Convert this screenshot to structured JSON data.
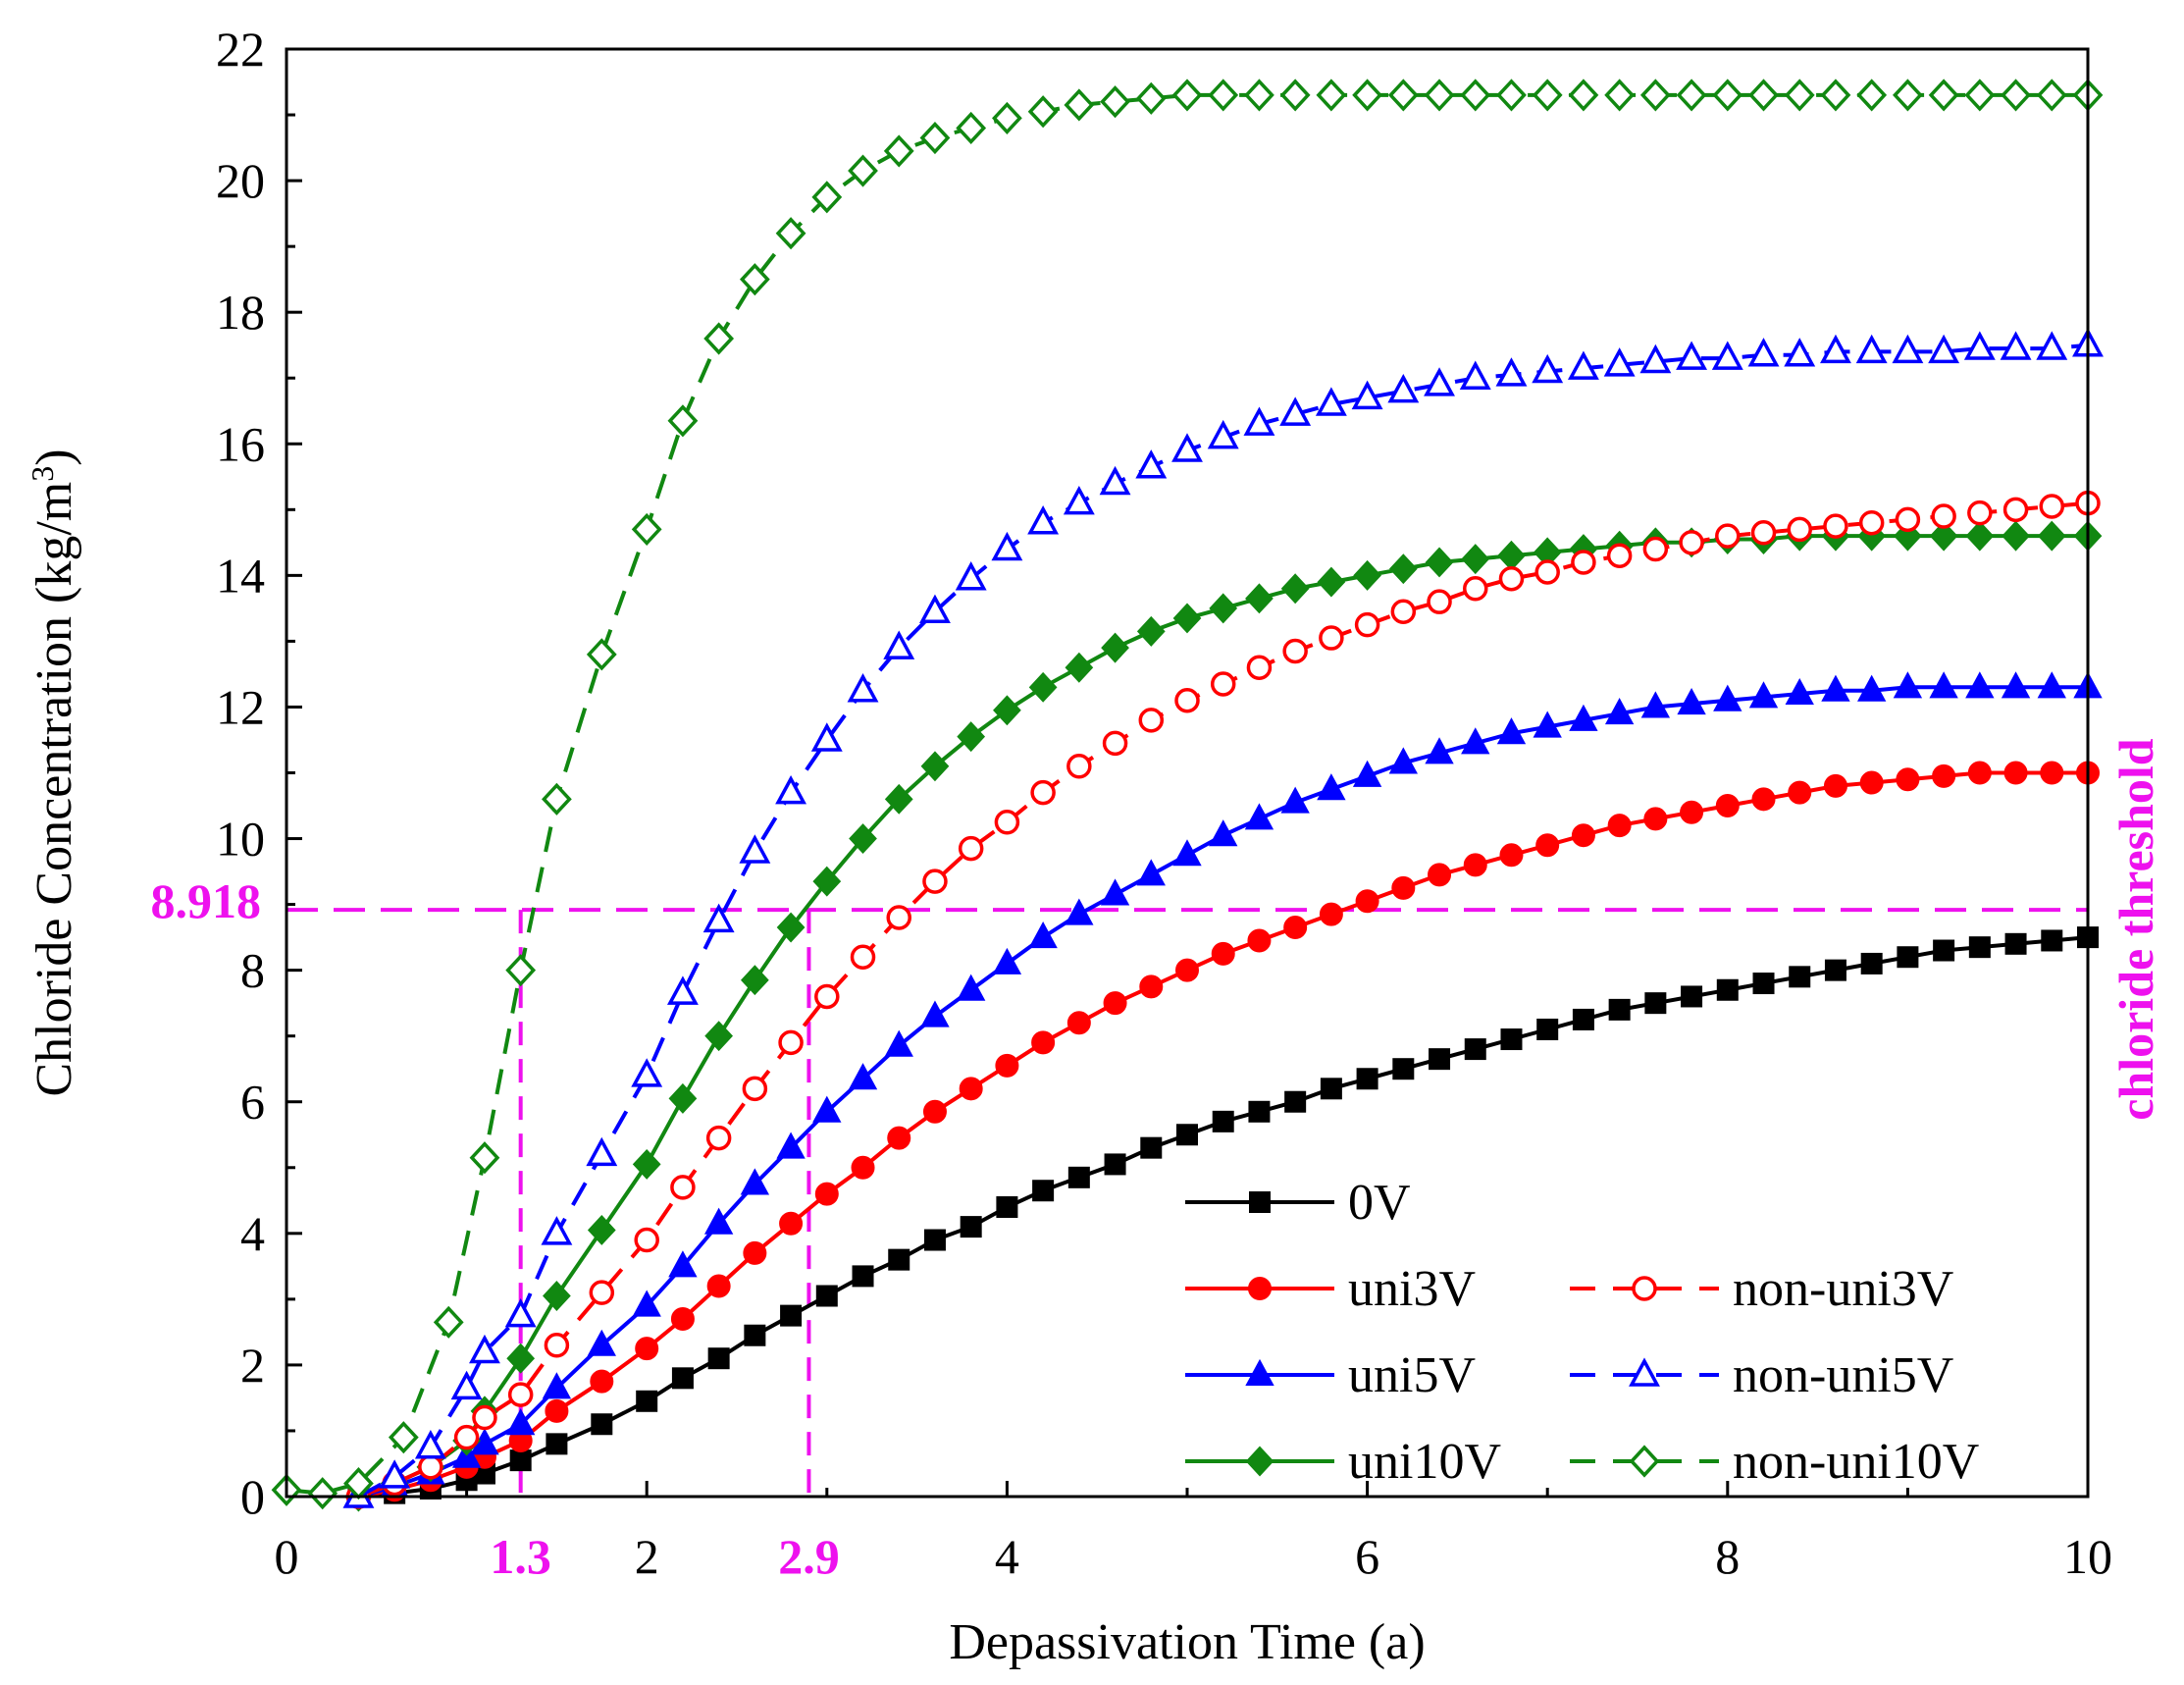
{
  "chart_data": {
    "type": "line",
    "xlabel": "Depassivation Time (a)",
    "ylabel": "Chloride Concentration (kg/m3)",
    "ylabel_parts": {
      "main": "Chloride Concentration (kg/m",
      "sup": "3",
      "close": ")"
    },
    "xlim": [
      0,
      10
    ],
    "ylim": [
      0,
      22
    ],
    "x_ticks": [
      0,
      2,
      4,
      6,
      8,
      10
    ],
    "y_ticks": [
      0,
      2,
      4,
      6,
      8,
      10,
      12,
      14,
      16,
      18,
      20,
      22
    ],
    "threshold": {
      "value": 8.918,
      "label": "8.918",
      "side_label": "chloride threshold",
      "color": "#ee11ee",
      "x_marks": [
        {
          "x": 1.3,
          "label": "1.3"
        },
        {
          "x": 2.9,
          "label": "2.9"
        }
      ]
    },
    "series": [
      {
        "name": "0V",
        "style": "solid",
        "marker": "square",
        "filled": true,
        "color": "#000000",
        "x": [
          0.4,
          0.6,
          0.8,
          1.0,
          1.1,
          1.3,
          1.5,
          1.75,
          2.0,
          2.2,
          2.4,
          2.6,
          2.8,
          3.0,
          3.2,
          3.4,
          3.6,
          3.8,
          4.0,
          4.2,
          4.4,
          4.6,
          4.8,
          5.0,
          5.2,
          5.4,
          5.6,
          5.8,
          6.0,
          6.2,
          6.4,
          6.6,
          6.8,
          7.0,
          7.2,
          7.4,
          7.6,
          7.8,
          8.0,
          8.2,
          8.4,
          8.6,
          8.8,
          9.0,
          9.2,
          9.4,
          9.6,
          9.8,
          10.0
        ],
        "values": [
          0.0,
          0.05,
          0.12,
          0.25,
          0.35,
          0.55,
          0.8,
          1.1,
          1.45,
          1.8,
          2.1,
          2.45,
          2.75,
          3.05,
          3.35,
          3.6,
          3.9,
          4.1,
          4.4,
          4.65,
          4.85,
          5.05,
          5.3,
          5.5,
          5.7,
          5.85,
          6.0,
          6.2,
          6.35,
          6.5,
          6.65,
          6.8,
          6.95,
          7.1,
          7.25,
          7.4,
          7.5,
          7.6,
          7.7,
          7.8,
          7.9,
          8.0,
          8.1,
          8.2,
          8.3,
          8.35,
          8.4,
          8.45,
          8.5
        ]
      },
      {
        "name": "uni3V",
        "style": "solid",
        "marker": "circle",
        "filled": true,
        "color": "#ff0000",
        "x": [
          0.4,
          0.6,
          0.8,
          1.0,
          1.1,
          1.3,
          1.5,
          1.75,
          2.0,
          2.2,
          2.4,
          2.6,
          2.8,
          3.0,
          3.2,
          3.4,
          3.6,
          3.8,
          4.0,
          4.2,
          4.4,
          4.6,
          4.8,
          5.0,
          5.2,
          5.4,
          5.6,
          5.8,
          6.0,
          6.2,
          6.4,
          6.6,
          6.8,
          7.0,
          7.2,
          7.4,
          7.6,
          7.8,
          8.0,
          8.2,
          8.4,
          8.6,
          8.8,
          9.0,
          9.2,
          9.4,
          9.6,
          9.8,
          10.0
        ],
        "values": [
          0.0,
          0.1,
          0.25,
          0.45,
          0.6,
          0.85,
          1.3,
          1.75,
          2.25,
          2.7,
          3.2,
          3.7,
          4.15,
          4.6,
          5.0,
          5.45,
          5.85,
          6.2,
          6.55,
          6.9,
          7.2,
          7.5,
          7.75,
          8.0,
          8.25,
          8.45,
          8.65,
          8.85,
          9.05,
          9.25,
          9.45,
          9.6,
          9.75,
          9.9,
          10.05,
          10.2,
          10.3,
          10.4,
          10.5,
          10.6,
          10.7,
          10.8,
          10.85,
          10.9,
          10.95,
          11.0,
          11.0,
          11.0,
          11.0
        ]
      },
      {
        "name": "uni5V",
        "style": "solid",
        "marker": "triangle",
        "filled": true,
        "color": "#0000ff",
        "x": [
          0.4,
          0.6,
          0.8,
          1.0,
          1.1,
          1.3,
          1.5,
          1.75,
          2.0,
          2.2,
          2.4,
          2.6,
          2.8,
          3.0,
          3.2,
          3.4,
          3.6,
          3.8,
          4.0,
          4.2,
          4.4,
          4.6,
          4.8,
          5.0,
          5.2,
          5.4,
          5.6,
          5.8,
          6.0,
          6.2,
          6.4,
          6.6,
          6.8,
          7.0,
          7.2,
          7.4,
          7.6,
          7.8,
          8.0,
          8.2,
          8.4,
          8.6,
          8.8,
          9.0,
          9.2,
          9.4,
          9.6,
          9.8,
          10.0
        ],
        "values": [
          0.0,
          0.15,
          0.35,
          0.6,
          0.8,
          1.1,
          1.65,
          2.3,
          2.9,
          3.5,
          4.15,
          4.75,
          5.3,
          5.85,
          6.35,
          6.85,
          7.3,
          7.7,
          8.1,
          8.5,
          8.85,
          9.15,
          9.45,
          9.75,
          10.05,
          10.3,
          10.55,
          10.75,
          10.95,
          11.15,
          11.3,
          11.45,
          11.6,
          11.7,
          11.8,
          11.9,
          12.0,
          12.05,
          12.1,
          12.15,
          12.2,
          12.25,
          12.25,
          12.3,
          12.3,
          12.3,
          12.3,
          12.3,
          12.3
        ]
      },
      {
        "name": "uni10V",
        "style": "solid",
        "marker": "diamond",
        "filled": true,
        "color": "#118811",
        "x": [
          0.4,
          0.6,
          0.8,
          1.0,
          1.1,
          1.3,
          1.5,
          1.75,
          2.0,
          2.2,
          2.4,
          2.6,
          2.8,
          3.0,
          3.2,
          3.4,
          3.6,
          3.8,
          4.0,
          4.2,
          4.4,
          4.6,
          4.8,
          5.0,
          5.2,
          5.4,
          5.6,
          5.8,
          6.0,
          6.2,
          6.4,
          6.6,
          6.8,
          7.0,
          7.2,
          7.4,
          7.6,
          7.8,
          8.0,
          8.2,
          8.4,
          8.6,
          8.8,
          9.0,
          9.2,
          9.4,
          9.6,
          9.8,
          10.0
        ],
        "values": [
          0.0,
          0.2,
          0.45,
          0.85,
          1.3,
          2.1,
          3.05,
          4.05,
          5.05,
          6.05,
          7.0,
          7.85,
          8.65,
          9.35,
          10.0,
          10.6,
          11.1,
          11.55,
          11.95,
          12.3,
          12.6,
          12.9,
          13.15,
          13.35,
          13.5,
          13.65,
          13.8,
          13.9,
          14.0,
          14.1,
          14.2,
          14.25,
          14.3,
          14.35,
          14.4,
          14.45,
          14.5,
          14.5,
          14.55,
          14.55,
          14.6,
          14.6,
          14.6,
          14.6,
          14.6,
          14.6,
          14.6,
          14.6,
          14.6
        ]
      },
      {
        "name": "non-uni3V",
        "style": "dashed",
        "marker": "circle",
        "filled": false,
        "color": "#ff0000",
        "x": [
          0.4,
          0.6,
          0.8,
          1.0,
          1.1,
          1.3,
          1.5,
          1.75,
          2.0,
          2.2,
          2.4,
          2.6,
          2.8,
          3.0,
          3.2,
          3.4,
          3.6,
          3.8,
          4.0,
          4.2,
          4.4,
          4.6,
          4.8,
          5.0,
          5.2,
          5.4,
          5.6,
          5.8,
          6.0,
          6.2,
          6.4,
          6.6,
          6.8,
          7.0,
          7.2,
          7.4,
          7.6,
          7.8,
          8.0,
          8.2,
          8.4,
          8.6,
          8.8,
          9.0,
          9.2,
          9.4,
          9.6,
          9.8,
          10.0
        ],
        "values": [
          0.0,
          0.2,
          0.45,
          0.9,
          1.2,
          1.55,
          2.3,
          3.1,
          3.9,
          4.7,
          5.45,
          6.2,
          6.9,
          7.6,
          8.2,
          8.8,
          9.35,
          9.85,
          10.25,
          10.7,
          11.1,
          11.45,
          11.8,
          12.1,
          12.35,
          12.6,
          12.85,
          13.05,
          13.25,
          13.45,
          13.6,
          13.8,
          13.95,
          14.05,
          14.2,
          14.3,
          14.4,
          14.5,
          14.6,
          14.65,
          14.7,
          14.75,
          14.8,
          14.85,
          14.9,
          14.95,
          15.0,
          15.05,
          15.1
        ]
      },
      {
        "name": "non-uni5V",
        "style": "dashed",
        "marker": "triangle",
        "filled": false,
        "color": "#0000ff",
        "x": [
          0.4,
          0.6,
          0.8,
          1.0,
          1.1,
          1.3,
          1.5,
          1.75,
          2.0,
          2.2,
          2.4,
          2.6,
          2.8,
          3.0,
          3.2,
          3.4,
          3.6,
          3.8,
          4.0,
          4.2,
          4.4,
          4.6,
          4.8,
          5.0,
          5.2,
          5.4,
          5.6,
          5.8,
          6.0,
          6.2,
          6.4,
          6.6,
          6.8,
          7.0,
          7.2,
          7.4,
          7.6,
          7.8,
          8.0,
          8.2,
          8.4,
          8.6,
          8.8,
          9.0,
          9.2,
          9.4,
          9.6,
          9.8,
          10.0
        ],
        "values": [
          0.0,
          0.3,
          0.75,
          1.65,
          2.2,
          2.75,
          4.0,
          5.2,
          6.4,
          7.65,
          8.75,
          9.8,
          10.7,
          11.5,
          12.25,
          12.9,
          13.45,
          13.95,
          14.4,
          14.8,
          15.1,
          15.4,
          15.65,
          15.9,
          16.1,
          16.3,
          16.45,
          16.6,
          16.7,
          16.8,
          16.9,
          17.0,
          17.05,
          17.1,
          17.15,
          17.2,
          17.25,
          17.3,
          17.3,
          17.35,
          17.35,
          17.4,
          17.4,
          17.4,
          17.4,
          17.45,
          17.45,
          17.45,
          17.5
        ]
      },
      {
        "name": "non-uni10V",
        "style": "dashed",
        "marker": "diamond",
        "filled": false,
        "color": "#118811",
        "x": [
          0.0,
          0.2,
          0.4,
          0.65,
          0.9,
          1.1,
          1.3,
          1.5,
          1.75,
          2.0,
          2.2,
          2.4,
          2.6,
          2.8,
          3.0,
          3.2,
          3.4,
          3.6,
          3.8,
          4.0,
          4.2,
          4.4,
          4.6,
          4.8,
          5.0,
          5.2,
          5.4,
          5.6,
          5.8,
          6.0,
          6.2,
          6.4,
          6.6,
          6.8,
          7.0,
          7.2,
          7.4,
          7.6,
          7.8,
          8.0,
          8.2,
          8.4,
          8.6,
          8.8,
          9.0,
          9.2,
          9.4,
          9.6,
          9.8,
          10.0
        ],
        "values": [
          0.1,
          0.05,
          0.2,
          0.9,
          2.65,
          5.15,
          8.0,
          10.6,
          12.8,
          14.7,
          16.35,
          17.6,
          18.5,
          19.2,
          19.75,
          20.15,
          20.45,
          20.65,
          20.8,
          20.95,
          21.05,
          21.15,
          21.2,
          21.25,
          21.3,
          21.3,
          21.3,
          21.3,
          21.3,
          21.3,
          21.3,
          21.3,
          21.3,
          21.3,
          21.3,
          21.3,
          21.3,
          21.3,
          21.3,
          21.3,
          21.3,
          21.3,
          21.3,
          21.3,
          21.3,
          21.3,
          21.3,
          21.3,
          21.3,
          21.3
        ]
      }
    ],
    "legend": {
      "position": "bottom-right",
      "rows": [
        [
          "0V"
        ],
        [
          "uni3V",
          "non-uni3V"
        ],
        [
          "uni5V",
          "non-uni5V"
        ],
        [
          "uni10V",
          "non-uni10V"
        ]
      ]
    }
  }
}
